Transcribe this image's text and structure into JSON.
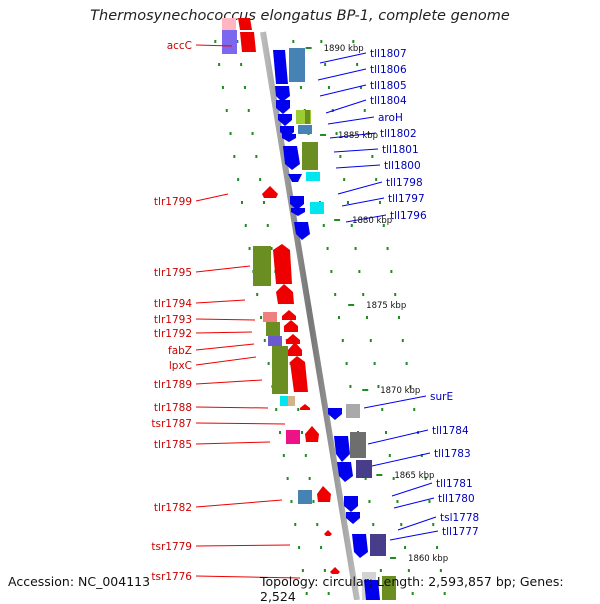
{
  "title": "Thermosynechococcus elongatus BP-1, complete genome",
  "footer": {
    "accession": "Accession: NC_004113",
    "stats": "Topology: circular; Length: 2,593,857 bp; Genes: 2,524"
  },
  "tick_labels": [
    {
      "text": "1890 kbp"
    },
    {
      "text": "1885 kbp"
    },
    {
      "text": "1880 kbp"
    },
    {
      "text": "1875 kbp"
    },
    {
      "text": "1870 kbp"
    },
    {
      "text": "1865 kbp"
    },
    {
      "text": "1860 kbp"
    }
  ],
  "forward_genes": [
    {
      "text": "accC"
    },
    {
      "text": "tlr1799"
    },
    {
      "text": "tlr1795"
    },
    {
      "text": "tlr1794"
    },
    {
      "text": "tlr1793"
    },
    {
      "text": "tlr1792"
    },
    {
      "text": "fabZ"
    },
    {
      "text": "lpxC"
    },
    {
      "text": "tlr1789"
    },
    {
      "text": "tlr1788"
    },
    {
      "text": "tsr1787"
    },
    {
      "text": "tlr1785"
    },
    {
      "text": "tlr1782"
    },
    {
      "text": "tsr1779"
    },
    {
      "text": "tsr1776"
    }
  ],
  "reverse_genes": [
    {
      "text": "tll1807"
    },
    {
      "text": "tll1806"
    },
    {
      "text": "tll1805"
    },
    {
      "text": "tll1804"
    },
    {
      "text": "aroH"
    },
    {
      "text": "tll1802"
    },
    {
      "text": "tll1801"
    },
    {
      "text": "tll1800"
    },
    {
      "text": "tll1798"
    },
    {
      "text": "tll1797"
    },
    {
      "text": "tll1796"
    },
    {
      "text": "surE"
    },
    {
      "text": "tll1784"
    },
    {
      "text": "tll1783"
    },
    {
      "text": "tll1781"
    },
    {
      "text": "tll1780"
    },
    {
      "text": "tsl1778"
    },
    {
      "text": "tll1777"
    }
  ],
  "colors": {
    "forward": "#ee0000",
    "reverse": "#0000ee",
    "backbone": "#888888",
    "ruler": "#228b22",
    "cog_green": "#6b8e23",
    "cog_steelblue": "#4682b4",
    "cog_cyan": "#00e5ee",
    "cog_purple": "#6a5acd",
    "cog_grey": "#a9a9a9",
    "cog_pink": "#ee1289"
  }
}
